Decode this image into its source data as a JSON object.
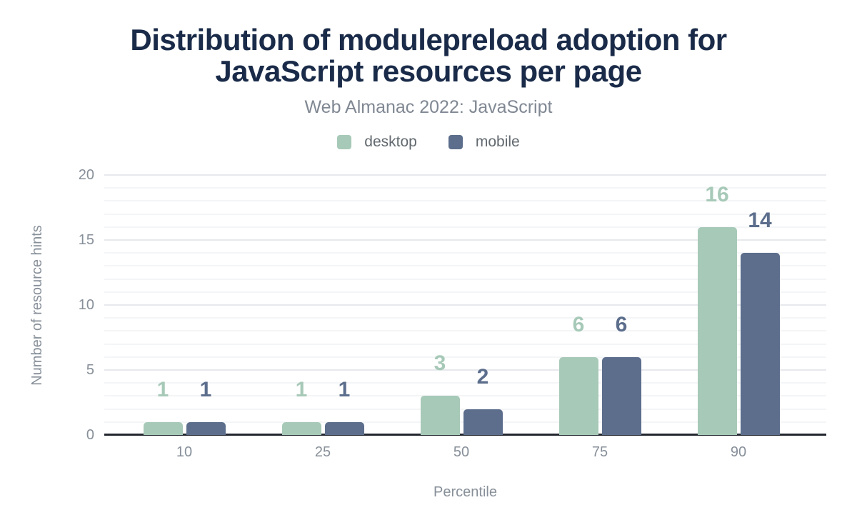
{
  "header": {
    "title_line1": "Distribution of modulepreload adoption for",
    "title_line2": "JavaScript resources per page",
    "subtitle": "Web Almanac 2022: JavaScript"
  },
  "axes": {
    "x_label": "Percentile",
    "y_label": "Number of resource hints"
  },
  "colors": {
    "title_text": "#1a2b49",
    "subtitle_text": "#808893",
    "legend_text": "#62696f",
    "axis_text": "#878f99",
    "axis_line": "#23262e",
    "grid_major": "#e7e9ed",
    "grid_minor": "#f4f5f7",
    "background": "#ffffff"
  },
  "chart_data": {
    "type": "bar",
    "title": "Distribution of modulepreload adoption for JavaScript resources per page",
    "subtitle": "Web Almanac 2022: JavaScript",
    "categories": [
      "10",
      "25",
      "50",
      "75",
      "90"
    ],
    "series": [
      {
        "name": "desktop",
        "color": "#a7c9b8",
        "values": [
          1,
          1,
          3,
          6,
          16
        ]
      },
      {
        "name": "mobile",
        "color": "#5c6e8c",
        "values": [
          1,
          1,
          2,
          6,
          14
        ]
      }
    ],
    "xlabel": "Percentile",
    "ylabel": "Number of resource hints",
    "ylim": [
      0,
      20
    ],
    "yticks": [
      0,
      5,
      10,
      15,
      20
    ],
    "minor_grid_step": 1,
    "grid": "horizontal",
    "legend_position": "top",
    "bar_value_labels": true
  }
}
